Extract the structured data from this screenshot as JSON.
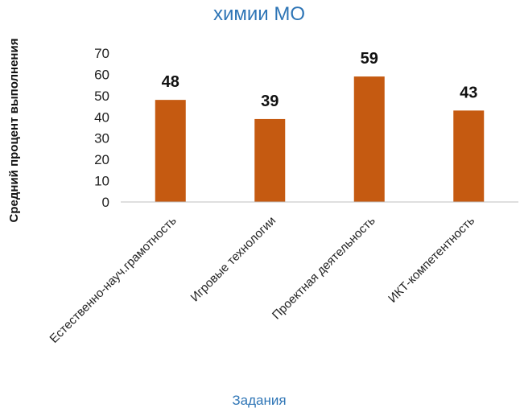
{
  "chart_data": {
    "type": "bar",
    "title": "химии МО",
    "xlabel": "Задания",
    "ylabel": "Средний процент выполнения",
    "categories": [
      "Естественно-науч.грамотность",
      "Игровые технологии",
      "Проектная деятельность",
      "ИКТ-компетентность"
    ],
    "values": [
      48,
      39,
      59,
      43
    ],
    "data_labels": [
      "48",
      "39",
      "59",
      "43"
    ],
    "ylim": [
      0,
      70
    ],
    "yticks": [
      "0",
      "10",
      "20",
      "30",
      "40",
      "50",
      "60",
      "70"
    ],
    "grid": false,
    "legend": "none",
    "colors": {
      "bar": "#c55a11",
      "title": "#2e75b6",
      "xlabel": "#2e75b6",
      "text": "#222222"
    }
  }
}
